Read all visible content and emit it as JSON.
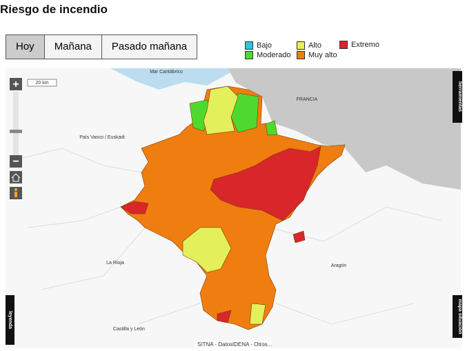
{
  "header": {
    "title": "Riesgo de incendio"
  },
  "tabs": [
    {
      "label": "Hoy",
      "active": true
    },
    {
      "label": "Mañana",
      "active": false
    },
    {
      "label": "Pasado mañana",
      "active": false
    }
  ],
  "legend": [
    {
      "label": "Bajo",
      "color": "#29c6dc"
    },
    {
      "label": "Moderado",
      "color": "#4fd92e"
    },
    {
      "label": "Alto",
      "color": "#e4ef5c"
    },
    {
      "label": "Muy alto",
      "color": "#f07d10"
    },
    {
      "label": "Extremo",
      "color": "#d8262a"
    }
  ],
  "map": {
    "labels": [
      "Mar Cantábrico",
      "FRANCIA",
      "País Vasco / Euskadi",
      "La Rioja",
      "Aragón",
      "Castilla y León"
    ],
    "scale": "20 km",
    "controls": {
      "zoom_in": "+",
      "zoom_out": "−"
    },
    "side_tabs": {
      "tools": "herramientas",
      "legend": "leyenda",
      "location": "mapa situación"
    },
    "attribution": [
      "SITNA - Datos",
      "IDENA - Otros..."
    ]
  }
}
